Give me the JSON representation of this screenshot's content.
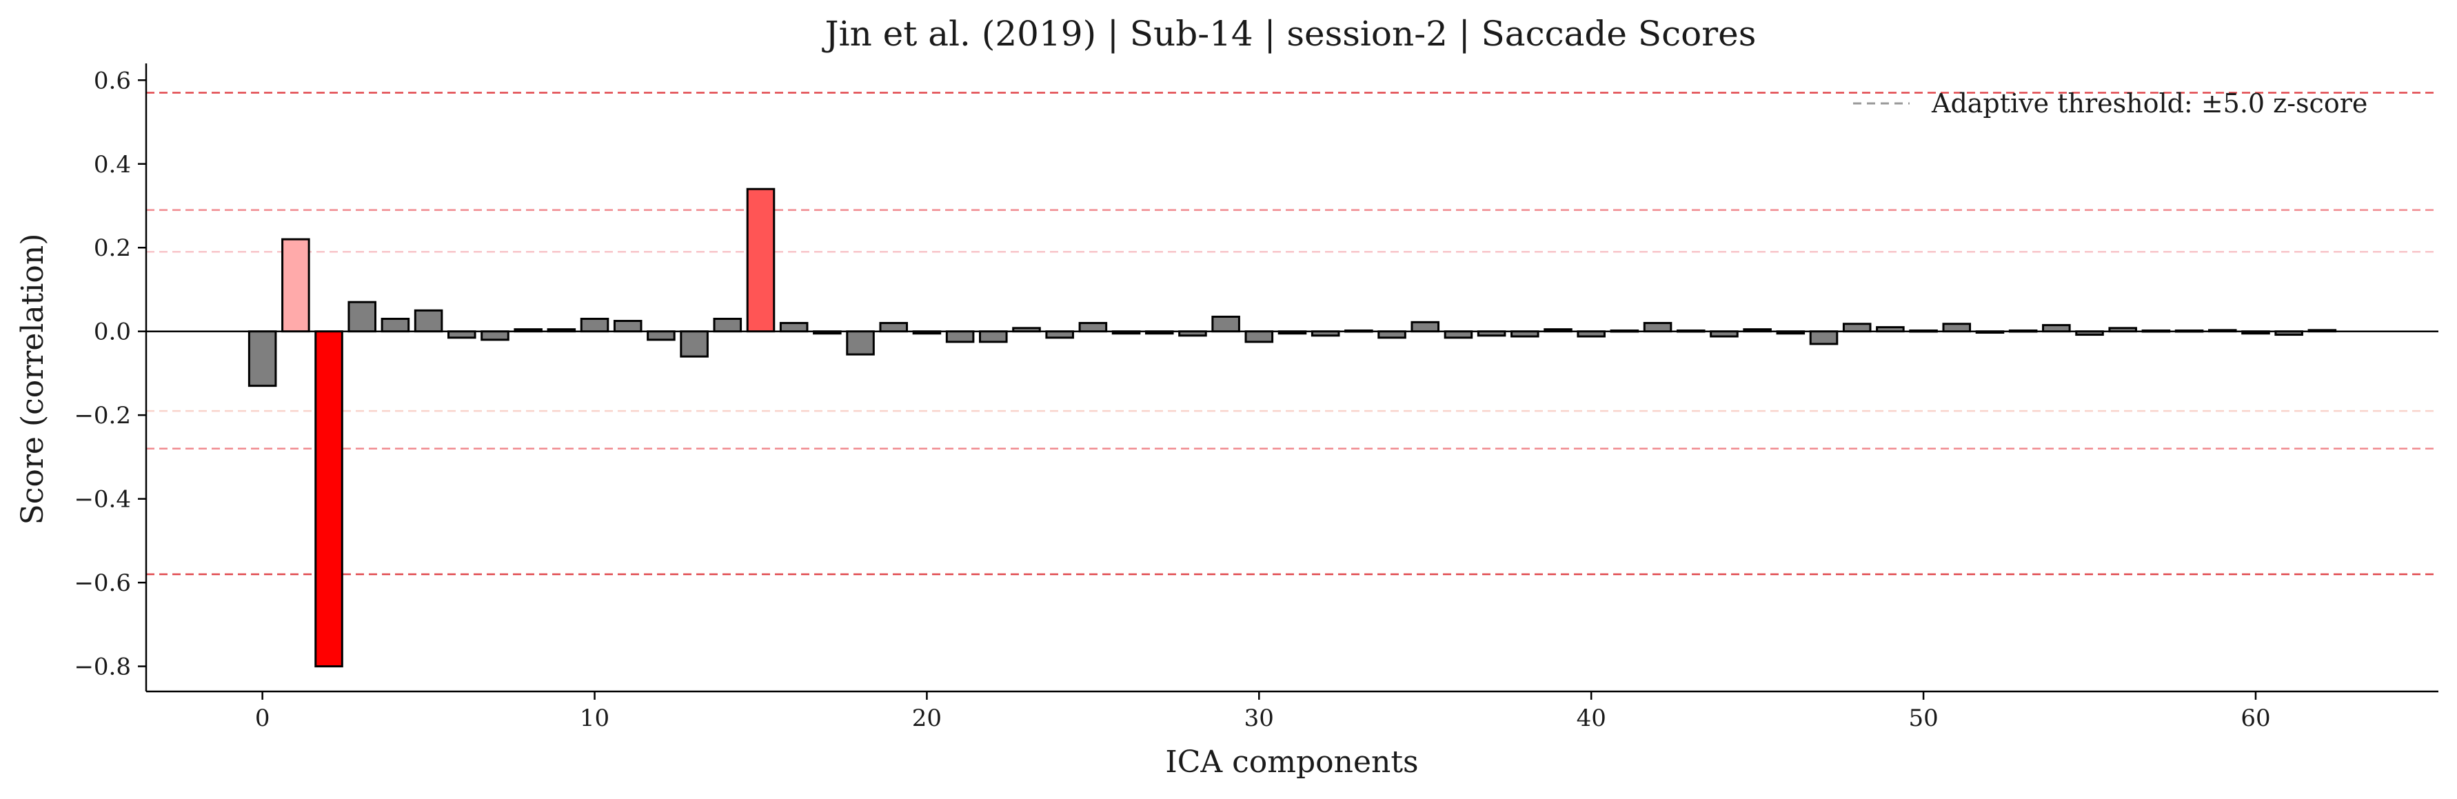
{
  "chart_data": {
    "type": "bar",
    "title": "Jin et al. (2019) | Sub-14 | session-2 | Saccade Scores",
    "xlabel": "ICA components",
    "ylabel": "Score (correlation)",
    "xlim": [
      -3.5,
      65.5
    ],
    "ylim": [
      -0.86,
      0.64
    ],
    "xticks": [
      0,
      10,
      20,
      30,
      40,
      50,
      60
    ],
    "xtick_labels": [
      "0",
      "10",
      "20",
      "30",
      "40",
      "50",
      "60"
    ],
    "yticks": [
      -0.8,
      -0.6,
      -0.4,
      -0.2,
      0.0,
      0.2,
      0.4,
      0.6
    ],
    "ytick_labels": [
      "−0.8",
      "−0.6",
      "−0.4",
      "−0.2",
      "0.0",
      "0.2",
      "0.4",
      "0.6"
    ],
    "grid": false,
    "legend": {
      "placement": "top-right",
      "entries": [
        {
          "label": "Adaptive threshold: ±5.0 z-score",
          "style": "dashed",
          "color": "#999999"
        }
      ]
    },
    "zero_line": 0.0,
    "threshold_lines": [
      {
        "value": 0.57,
        "color": "#e0474c"
      },
      {
        "value": 0.29,
        "color": "#f08a8f"
      },
      {
        "value": 0.19,
        "color": "#f8c4c8"
      },
      {
        "value": -0.19,
        "color": "#f9d4cc"
      },
      {
        "value": -0.28,
        "color": "#f08a8f"
      },
      {
        "value": -0.58,
        "color": "#e0474c"
      }
    ],
    "x": [
      0,
      1,
      2,
      3,
      4,
      5,
      6,
      7,
      8,
      9,
      10,
      11,
      12,
      13,
      14,
      15,
      16,
      17,
      18,
      19,
      20,
      21,
      22,
      23,
      24,
      25,
      26,
      27,
      28,
      29,
      30,
      31,
      32,
      33,
      34,
      35,
      36,
      37,
      38,
      39,
      40,
      41,
      42,
      43,
      44,
      45,
      46,
      47,
      48,
      49,
      50,
      51,
      52,
      53,
      54,
      55,
      56,
      57,
      58,
      59,
      60,
      61,
      62
    ],
    "values": [
      -0.13,
      0.22,
      -0.8,
      0.07,
      0.03,
      0.05,
      -0.015,
      -0.02,
      0.005,
      0.005,
      0.03,
      0.025,
      -0.02,
      -0.06,
      0.03,
      0.34,
      0.02,
      -0.005,
      -0.055,
      0.02,
      -0.005,
      -0.025,
      -0.025,
      0.008,
      -0.015,
      0.02,
      -0.005,
      -0.005,
      -0.01,
      0.035,
      -0.025,
      -0.005,
      -0.01,
      0.002,
      -0.015,
      0.022,
      -0.015,
      -0.01,
      -0.012,
      0.005,
      -0.012,
      0.002,
      0.02,
      0.002,
      -0.012,
      0.005,
      -0.005,
      -0.03,
      0.018,
      0.01,
      0.002,
      0.018,
      -0.003,
      0.002,
      0.015,
      -0.008,
      0.008,
      0.002,
      0.002,
      0.003,
      -0.005,
      -0.008,
      0.003
    ],
    "bar_colors": {
      "default": "#7f7f7f",
      "highlighted": [
        {
          "index": 1,
          "color": "#ffaaaa"
        },
        {
          "index": 2,
          "color": "#ff0000"
        },
        {
          "index": 15,
          "color": "#ff5555"
        }
      ]
    }
  }
}
